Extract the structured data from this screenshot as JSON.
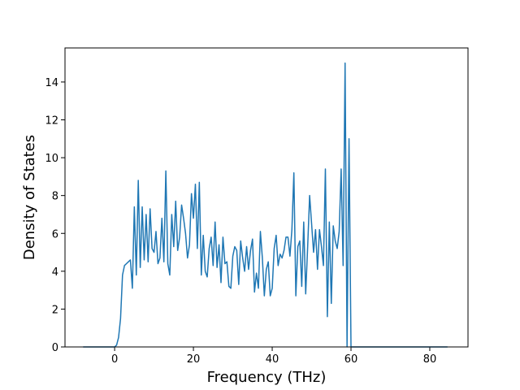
{
  "chart_data": {
    "type": "line",
    "xlabel": "Frequency (THz)",
    "ylabel": "Density of States",
    "xlim": [
      -12.6,
      89.7
    ],
    "ylim": [
      0,
      15.8
    ],
    "xticks": [
      0,
      20,
      40,
      60,
      80
    ],
    "yticks": [
      0,
      2,
      4,
      6,
      8,
      10,
      12,
      14
    ],
    "x": [
      -8,
      -7.5,
      -7,
      -6.5,
      -6,
      -5.5,
      -5,
      -4.5,
      -4,
      -3.5,
      -3,
      -2.5,
      -2,
      -1.5,
      -1,
      -0.5,
      0,
      0.5,
      1,
      1.5,
      2,
      2.5,
      3,
      3.5,
      4,
      4.5,
      5,
      5.5,
      6,
      6.5,
      7,
      7.5,
      8,
      8.5,
      9,
      9.5,
      10,
      10.5,
      11,
      11.5,
      12,
      12.5,
      13,
      13.5,
      14,
      14.5,
      15,
      15.5,
      16,
      16.5,
      17,
      17.5,
      18,
      18.5,
      19,
      19.5,
      20,
      20.5,
      21,
      21.5,
      22,
      22.5,
      23,
      23.5,
      24,
      24.5,
      25,
      25.5,
      26,
      26.5,
      27,
      27.5,
      28,
      28.5,
      29,
      29.5,
      30,
      30.5,
      31,
      31.5,
      32,
      32.5,
      33,
      33.5,
      34,
      34.5,
      35,
      35.5,
      36,
      36.5,
      37,
      37.5,
      38,
      38.5,
      39,
      39.5,
      40,
      40.5,
      41,
      41.5,
      42,
      42.5,
      43,
      43.5,
      44,
      44.5,
      45,
      45.5,
      46,
      46.5,
      47,
      47.5,
      48,
      48.5,
      49,
      49.5,
      50,
      50.5,
      51,
      51.5,
      52,
      52.5,
      53,
      53.5,
      54,
      54.5,
      55,
      55.5,
      56,
      56.5,
      57,
      57.5,
      58,
      58.5,
      59,
      59.5,
      60,
      60.5,
      61,
      61.5,
      62,
      62.5,
      63,
      63.5,
      64,
      64.5,
      65,
      65.5,
      66,
      66.5,
      67,
      67.5,
      68,
      68.5,
      69,
      69.5,
      70,
      70.5,
      71,
      71.5,
      72,
      72.5,
      73,
      73.5,
      74,
      74.5,
      75,
      75.5,
      76,
      76.5,
      77,
      77.5,
      78,
      78.5,
      79,
      79.5,
      80,
      80.5,
      81,
      81.5,
      82,
      82.5,
      83,
      83.5,
      84,
      84.5
    ],
    "series": [
      {
        "color": "#1f77b4",
        "values": [
          0,
          0,
          0,
          0,
          0,
          0,
          0,
          0,
          0,
          0,
          0,
          0,
          0,
          0,
          0,
          0,
          0,
          0.1,
          0.5,
          1.5,
          3.8,
          4.3,
          4.4,
          4.5,
          4.6,
          3.1,
          7.4,
          3.8,
          8.8,
          4.2,
          7.4,
          4.6,
          7.0,
          4.5,
          7.3,
          5.2,
          5.0,
          6.1,
          4.4,
          4.7,
          6.8,
          4.5,
          9.3,
          4.4,
          3.8,
          7.0,
          5.3,
          7.7,
          5.1,
          5.8,
          7.5,
          6.8,
          6.0,
          4.7,
          5.4,
          8.1,
          6.8,
          8.6,
          5.2,
          8.7,
          3.8,
          5.9,
          4.0,
          3.7,
          5.2,
          5.8,
          4.3,
          6.6,
          4.2,
          5.4,
          3.4,
          5.8,
          4.4,
          4.5,
          3.2,
          3.1,
          4.8,
          5.3,
          5.1,
          3.3,
          5.6,
          4.7,
          4.0,
          5.3,
          4.1,
          5.1,
          5.7,
          2.9,
          3.9,
          3.1,
          6.1,
          4.7,
          2.7,
          4.1,
          4.5,
          2.7,
          3.1,
          5.2,
          5.9,
          4.3,
          4.9,
          4.7,
          5.1,
          5.8,
          5.8,
          4.8,
          6.2,
          9.2,
          2.7,
          5.3,
          5.6,
          3.2,
          6.6,
          2.8,
          5.3,
          8.0,
          6.5,
          5.0,
          6.2,
          4.1,
          6.2,
          5.3,
          4.3,
          9.4,
          1.6,
          6.6,
          2.3,
          6.4,
          5.6,
          5.2,
          6.1,
          9.4,
          4.3,
          15.0,
          0,
          11.0,
          0,
          0,
          0,
          0,
          0,
          0,
          0,
          0,
          0,
          0,
          0,
          0,
          0,
          0,
          0,
          0,
          0,
          0,
          0,
          0,
          0,
          0,
          0,
          0,
          0,
          0,
          0,
          0,
          0,
          0,
          0,
          0,
          0,
          0,
          0,
          0,
          0,
          0,
          0,
          0,
          0,
          0,
          0,
          0,
          0,
          0,
          0,
          0,
          0,
          0
        ]
      }
    ]
  }
}
